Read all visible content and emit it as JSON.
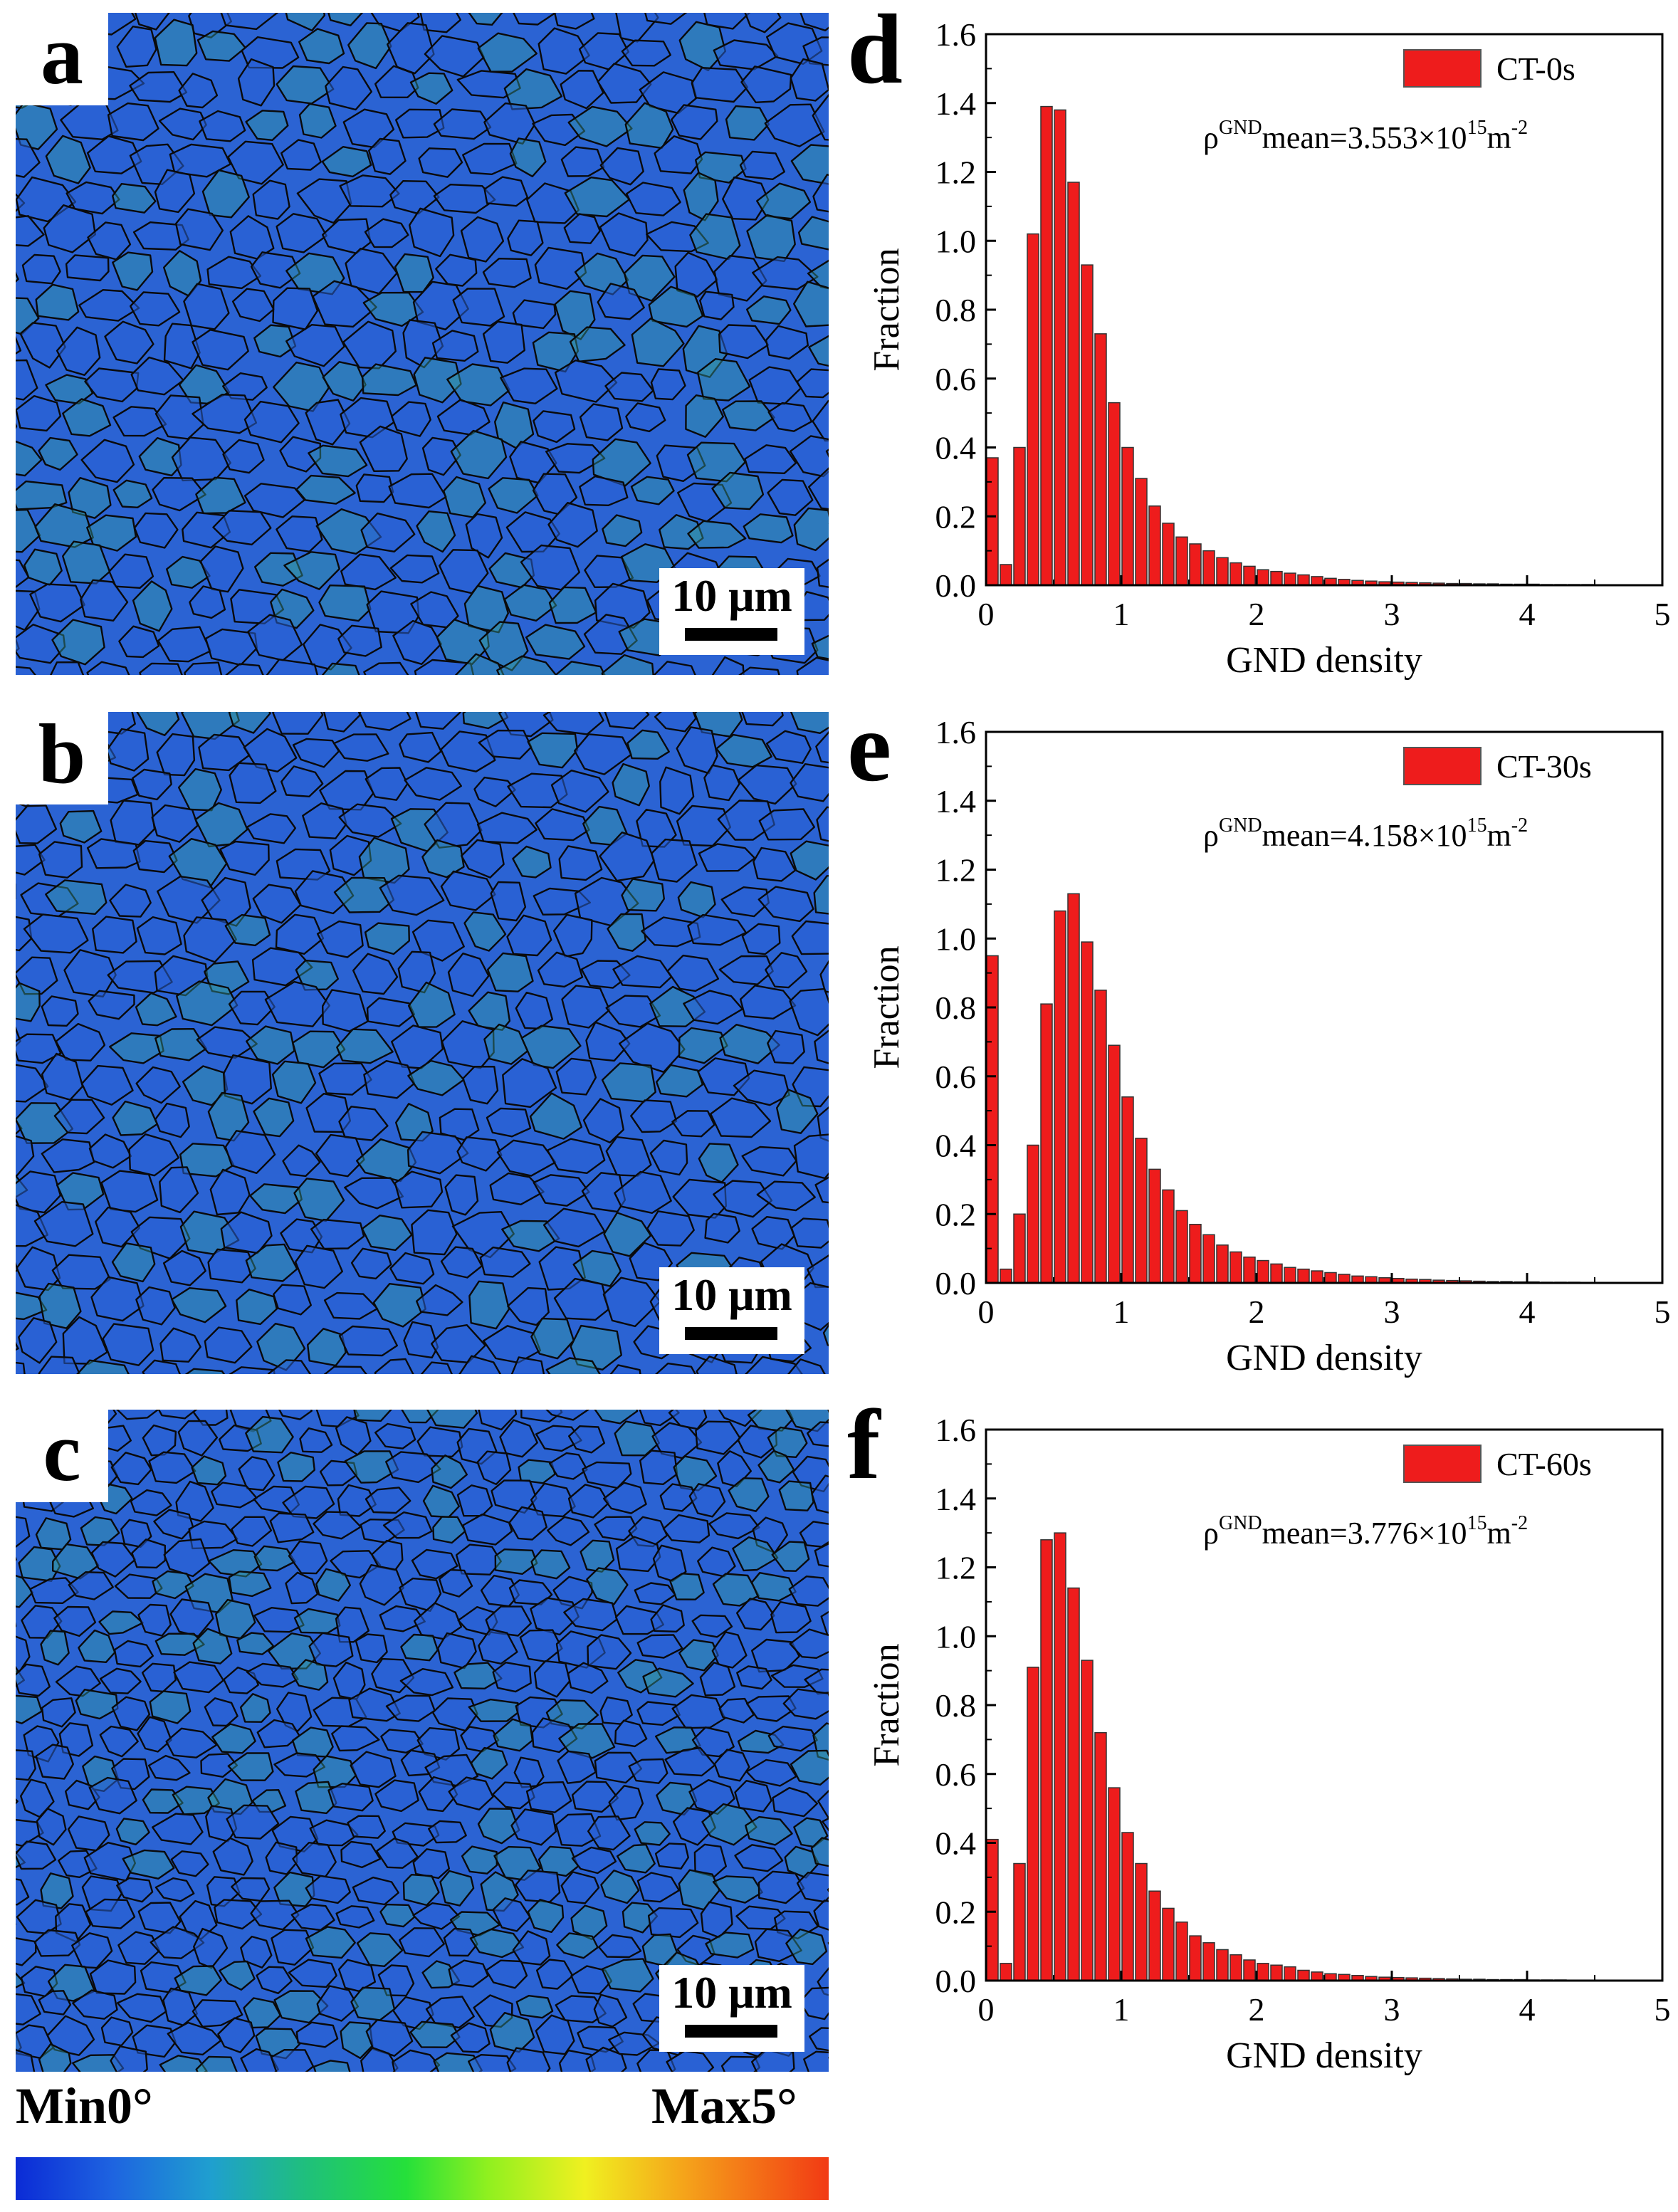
{
  "maps": [
    {
      "id": "a",
      "letter": "a",
      "scale_label": "10 μm"
    },
    {
      "id": "b",
      "letter": "b",
      "scale_label": "10 μm"
    },
    {
      "id": "c",
      "letter": "c",
      "scale_label": "10 μm"
    }
  ],
  "colorbar": {
    "min_label": "Min0°",
    "max_label": "Max5°",
    "colors": [
      "#0b2bd6",
      "#1f9fcf",
      "#25e03a",
      "#f0f020",
      "#f23a14"
    ]
  },
  "chart_data": [
    {
      "type": "bar",
      "panel": "d",
      "legend": "CT-0s",
      "annotation_prefix": "ρ",
      "annotation_sup1": "GND",
      "annotation_mid": "mean=3.553×10",
      "annotation_sup2": "15",
      "annotation_unit": "m",
      "annotation_sup3": "-2",
      "xlabel": "GND density",
      "ylabel": "Fraction",
      "xlim": [
        0,
        5
      ],
      "ylim": [
        0,
        1.6
      ],
      "xticks": [
        "0",
        "1",
        "2",
        "3",
        "4",
        "5"
      ],
      "yticks": [
        "0.0",
        "0.2",
        "0.4",
        "0.6",
        "0.8",
        "1.0",
        "1.2",
        "1.4",
        "1.6"
      ],
      "bin_width": 0.1,
      "x": [
        0.05,
        0.15,
        0.25,
        0.35,
        0.45,
        0.55,
        0.65,
        0.75,
        0.85,
        0.95,
        1.05,
        1.15,
        1.25,
        1.35,
        1.45,
        1.55,
        1.65,
        1.75,
        1.85,
        1.95,
        2.05,
        2.15,
        2.25,
        2.35,
        2.45,
        2.55,
        2.65,
        2.75,
        2.85,
        2.95,
        3.05,
        3.15,
        3.25,
        3.35,
        3.45,
        3.55,
        3.65,
        3.75,
        3.85,
        3.95,
        4.05,
        4.15,
        4.25,
        4.35,
        4.45,
        4.55,
        4.65,
        4.75,
        4.85,
        4.95
      ],
      "values": [
        0.37,
        0.06,
        0.4,
        1.02,
        1.39,
        1.38,
        1.17,
        0.93,
        0.73,
        0.53,
        0.4,
        0.31,
        0.23,
        0.18,
        0.14,
        0.12,
        0.1,
        0.08,
        0.065,
        0.055,
        0.045,
        0.04,
        0.035,
        0.03,
        0.025,
        0.02,
        0.017,
        0.014,
        0.012,
        0.01,
        0.009,
        0.008,
        0.007,
        0.006,
        0.005,
        0.005,
        0.004,
        0.004,
        0.003,
        0.003,
        0.003,
        0.002,
        0.002,
        0.002,
        0.002,
        0.001,
        0.001,
        0.001,
        0.001,
        0.001
      ]
    },
    {
      "type": "bar",
      "panel": "e",
      "legend": "CT-30s",
      "annotation_prefix": "ρ",
      "annotation_sup1": "GND",
      "annotation_mid": "mean=4.158×10",
      "annotation_sup2": "15",
      "annotation_unit": "m",
      "annotation_sup3": "-2",
      "xlabel": "GND density",
      "ylabel": "Fraction",
      "xlim": [
        0,
        5
      ],
      "ylim": [
        0,
        1.6
      ],
      "xticks": [
        "0",
        "1",
        "2",
        "3",
        "4",
        "5"
      ],
      "yticks": [
        "0.0",
        "0.2",
        "0.4",
        "0.6",
        "0.8",
        "1.0",
        "1.2",
        "1.4",
        "1.6"
      ],
      "bin_width": 0.1,
      "x": [
        0.05,
        0.15,
        0.25,
        0.35,
        0.45,
        0.55,
        0.65,
        0.75,
        0.85,
        0.95,
        1.05,
        1.15,
        1.25,
        1.35,
        1.45,
        1.55,
        1.65,
        1.75,
        1.85,
        1.95,
        2.05,
        2.15,
        2.25,
        2.35,
        2.45,
        2.55,
        2.65,
        2.75,
        2.85,
        2.95,
        3.05,
        3.15,
        3.25,
        3.35,
        3.45,
        3.55,
        3.65,
        3.75,
        3.85,
        3.95,
        4.05,
        4.15,
        4.25,
        4.35,
        4.45,
        4.55,
        4.65,
        4.75,
        4.85,
        4.95
      ],
      "values": [
        0.95,
        0.04,
        0.2,
        0.4,
        0.81,
        1.08,
        1.13,
        0.99,
        0.85,
        0.69,
        0.54,
        0.42,
        0.33,
        0.27,
        0.21,
        0.17,
        0.14,
        0.11,
        0.09,
        0.075,
        0.065,
        0.055,
        0.045,
        0.04,
        0.035,
        0.03,
        0.025,
        0.02,
        0.018,
        0.015,
        0.013,
        0.011,
        0.01,
        0.008,
        0.007,
        0.006,
        0.005,
        0.004,
        0.004,
        0.003,
        0.003,
        0.002,
        0.002,
        0.002,
        0.001,
        0.001,
        0.001,
        0.001,
        0.001,
        0.001
      ]
    },
    {
      "type": "bar",
      "panel": "f",
      "legend": "CT-60s",
      "annotation_prefix": "ρ",
      "annotation_sup1": "GND",
      "annotation_mid": "mean=3.776×10",
      "annotation_sup2": "15",
      "annotation_unit": "m",
      "annotation_sup3": "-2",
      "xlabel": "GND density",
      "ylabel": "Fraction",
      "xlim": [
        0,
        5
      ],
      "ylim": [
        0,
        1.6
      ],
      "xticks": [
        "0",
        "1",
        "2",
        "3",
        "4",
        "5"
      ],
      "yticks": [
        "0.0",
        "0.2",
        "0.4",
        "0.6",
        "0.8",
        "1.0",
        "1.2",
        "1.4",
        "1.6"
      ],
      "bin_width": 0.1,
      "x": [
        0.05,
        0.15,
        0.25,
        0.35,
        0.45,
        0.55,
        0.65,
        0.75,
        0.85,
        0.95,
        1.05,
        1.15,
        1.25,
        1.35,
        1.45,
        1.55,
        1.65,
        1.75,
        1.85,
        1.95,
        2.05,
        2.15,
        2.25,
        2.35,
        2.45,
        2.55,
        2.65,
        2.75,
        2.85,
        2.95,
        3.05,
        3.15,
        3.25,
        3.35,
        3.45,
        3.55,
        3.65,
        3.75,
        3.85,
        3.95,
        4.05,
        4.15,
        4.25,
        4.35,
        4.45,
        4.55,
        4.65,
        4.75,
        4.85,
        4.95
      ],
      "values": [
        0.41,
        0.05,
        0.34,
        0.91,
        1.28,
        1.3,
        1.14,
        0.93,
        0.72,
        0.56,
        0.43,
        0.34,
        0.26,
        0.21,
        0.17,
        0.13,
        0.11,
        0.09,
        0.075,
        0.06,
        0.05,
        0.045,
        0.04,
        0.03,
        0.025,
        0.02,
        0.018,
        0.015,
        0.012,
        0.01,
        0.009,
        0.008,
        0.007,
        0.006,
        0.005,
        0.004,
        0.004,
        0.003,
        0.003,
        0.003,
        0.002,
        0.002,
        0.002,
        0.001,
        0.001,
        0.001,
        0.001,
        0.001,
        0.001,
        0.001
      ]
    }
  ]
}
